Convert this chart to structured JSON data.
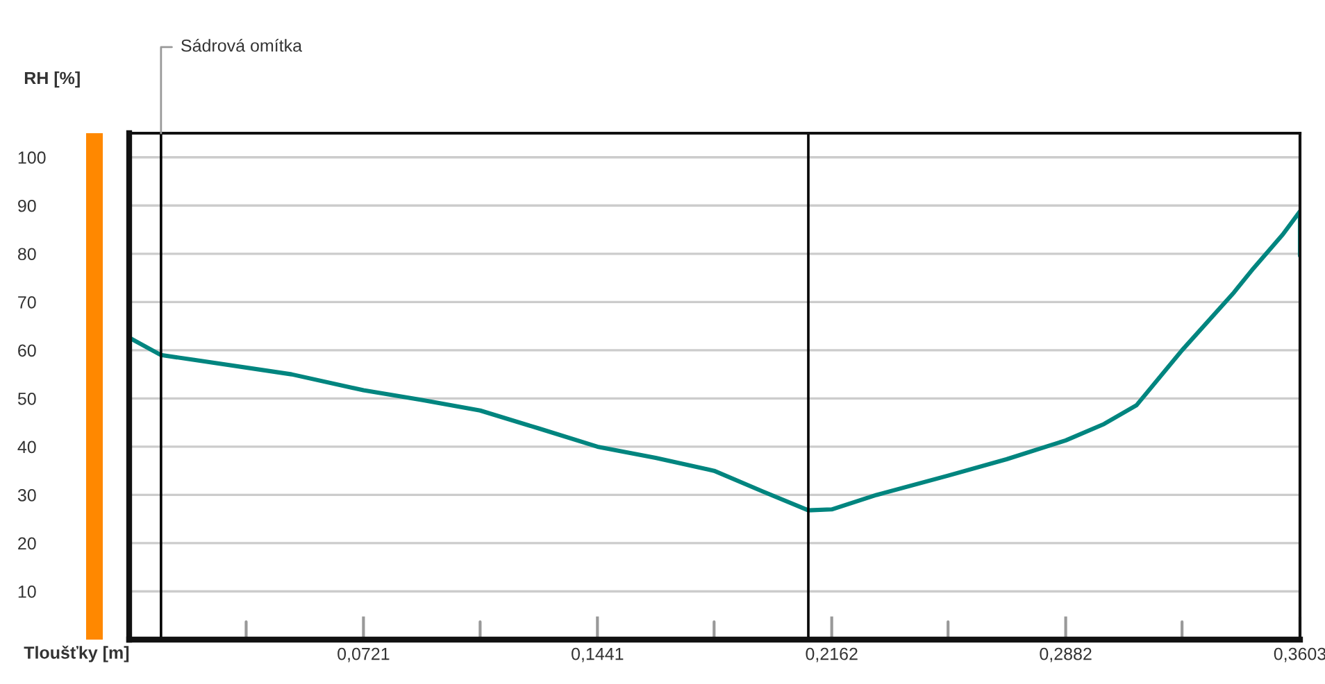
{
  "chart_data": {
    "type": "line",
    "ylabel": "RH [%]",
    "xlabel": "Tloušťky [m]",
    "xlim": [
      0,
      0.3603
    ],
    "ylim": [
      0,
      105
    ],
    "xticks": [
      {
        "value": 0.036,
        "label": null
      },
      {
        "value": 0.0721,
        "label": "0,0721"
      },
      {
        "value": 0.108,
        "label": null
      },
      {
        "value": 0.1441,
        "label": "0,1441"
      },
      {
        "value": 0.18,
        "label": null
      },
      {
        "value": 0.2162,
        "label": "0,2162"
      },
      {
        "value": 0.252,
        "label": null
      },
      {
        "value": 0.2882,
        "label": "0,2882"
      },
      {
        "value": 0.324,
        "label": null
      },
      {
        "value": 0.3603,
        "label": "0,3603"
      }
    ],
    "yticks": [
      10,
      20,
      30,
      40,
      50,
      60,
      70,
      80,
      90,
      100
    ],
    "grid": "y",
    "line_style": "solid",
    "marker": "none",
    "series": [
      {
        "color": "#00857f",
        "x": [
          0,
          0.0098,
          0.02,
          0.05,
          0.0721,
          0.09,
          0.108,
          0.126,
          0.1441,
          0.162,
          0.18,
          0.195,
          0.209,
          0.2162,
          0.23,
          0.252,
          0.27,
          0.2882,
          0.3,
          0.31,
          0.324,
          0.34,
          0.346,
          0.355,
          0.3603,
          0.3603
        ],
        "values": [
          62.6,
          59,
          58,
          55,
          51.7,
          49.7,
          47.5,
          43.8,
          40,
          37.7,
          35,
          30.7,
          26.8,
          27,
          30,
          34,
          37.4,
          41.3,
          44.7,
          48.6,
          60,
          72,
          77,
          84,
          88.8,
          79.6
        ]
      }
    ],
    "ref_lines": [
      {
        "axis": "x",
        "value": 0.0098,
        "label": "Sádrová omítka",
        "color": "#000000"
      },
      {
        "axis": "x",
        "value": 0.209,
        "color": "#000000"
      }
    ]
  }
}
